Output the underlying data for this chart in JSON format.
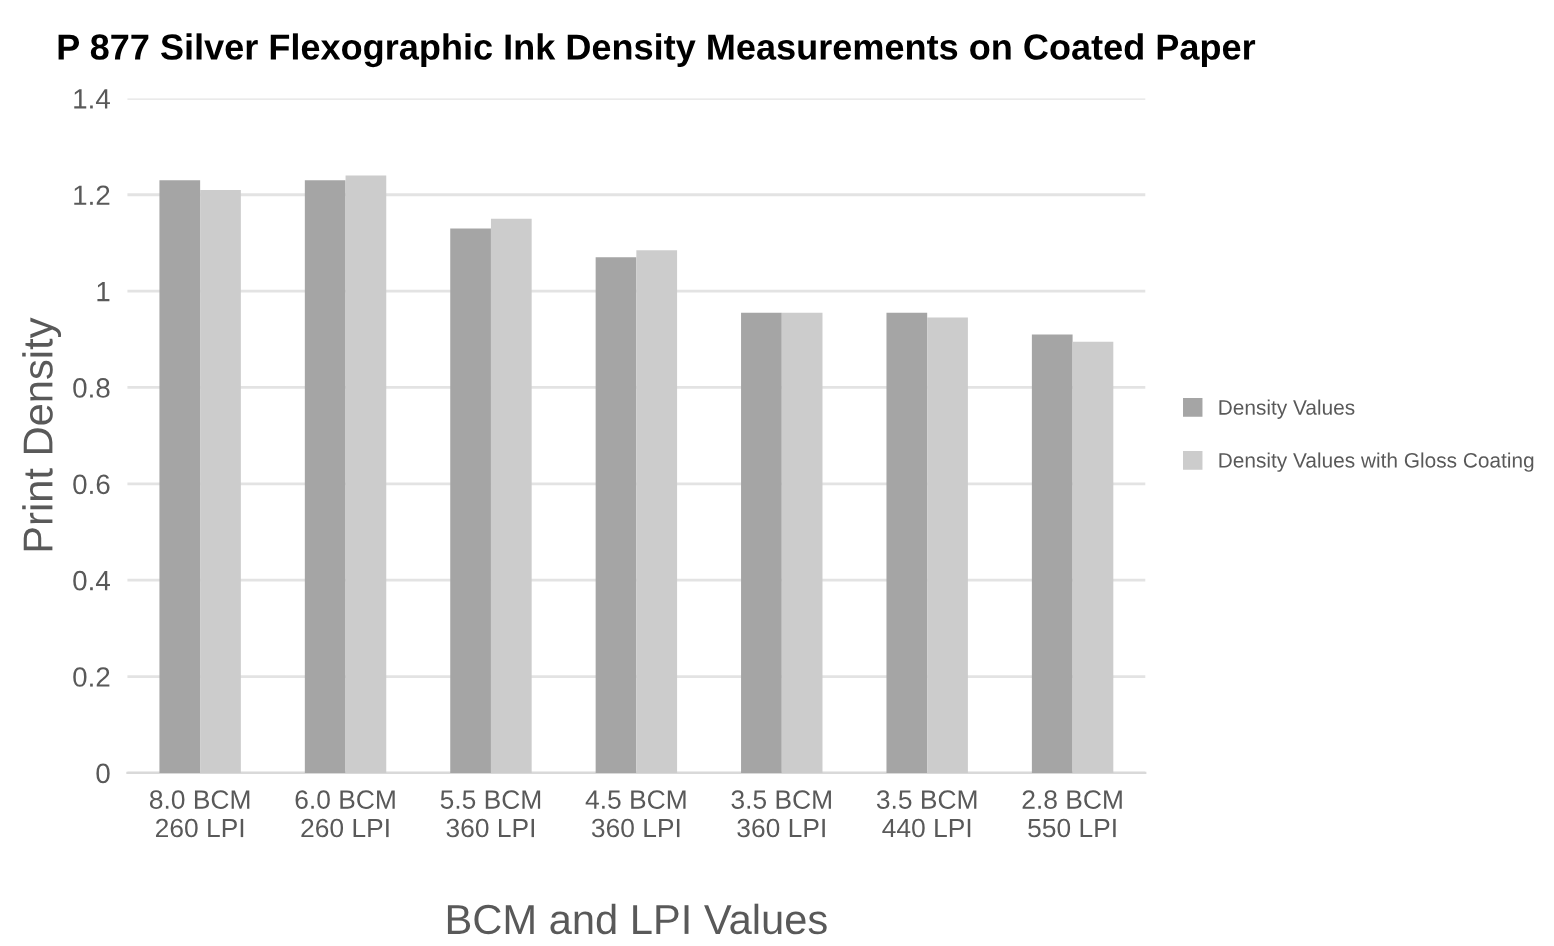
{
  "chart_data": {
    "type": "bar",
    "title": "P 877 Silver Flexographic Ink Density Measurements on Coated Paper",
    "xlabel": "BCM and LPI Values",
    "ylabel": "Print Density",
    "categories": [
      "8.0 BCM\n260 LPI",
      "6.0 BCM\n260 LPI",
      "5.5 BCM\n360 LPI",
      "4.5 BCM\n360 LPI",
      "3.5 BCM\n360 LPI",
      "3.5 BCM\n440 LPI",
      "2.8 BCM\n550 LPI"
    ],
    "series": [
      {
        "name": "Density Values",
        "color": "#a5a5a5",
        "values": [
          1.23,
          1.23,
          1.13,
          1.07,
          0.955,
          0.955,
          0.91
        ]
      },
      {
        "name": "Density Values with Gloss Coating",
        "color": "#cccccc",
        "values": [
          1.21,
          1.24,
          1.15,
          1.085,
          0.955,
          0.945,
          0.895
        ]
      }
    ],
    "ylim": [
      0,
      1.4
    ],
    "yticks": [
      0,
      0.2,
      0.4,
      0.6,
      0.8,
      1,
      1.2,
      1.4
    ],
    "grid": "y",
    "legend": "right"
  }
}
